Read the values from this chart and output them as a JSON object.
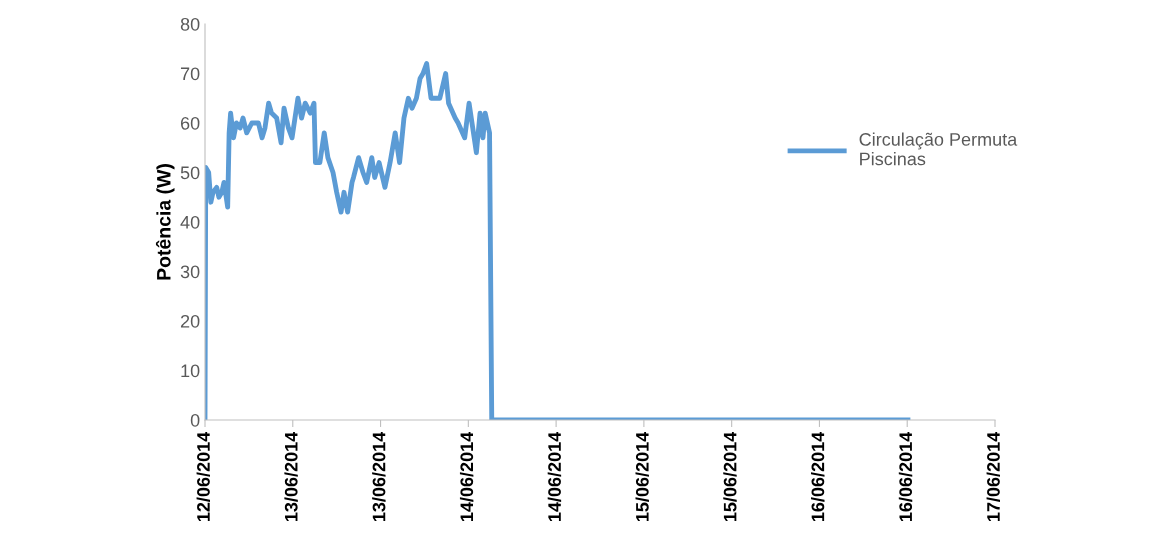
{
  "chart_data": {
    "type": "line",
    "ylabel": "Potência (W)",
    "legend": "right",
    "grid": false,
    "marker": "none",
    "line_style": "solid",
    "xlim": [
      "2014-06-12T12:00",
      "2014-06-17T00:00"
    ],
    "xticks": [
      {
        "value": "2014-06-12T12:00",
        "label": "12/06/2014"
      },
      {
        "value": "2014-06-13T00:00",
        "label": "13/06/2014"
      },
      {
        "value": "2014-06-13T12:00",
        "label": "13/06/2014"
      },
      {
        "value": "2014-06-14T00:00",
        "label": "14/06/2014"
      },
      {
        "value": "2014-06-14T12:00",
        "label": "14/06/2014"
      },
      {
        "value": "2014-06-15T00:00",
        "label": "15/06/2014"
      },
      {
        "value": "2014-06-15T12:00",
        "label": "15/06/2014"
      },
      {
        "value": "2014-06-16T00:00",
        "label": "16/06/2014"
      },
      {
        "value": "2014-06-16T12:00",
        "label": "16/06/2014"
      },
      {
        "value": "2014-06-17T00:00",
        "label": "17/06/2014"
      }
    ],
    "ylim": [
      0,
      80
    ],
    "yticks": [
      0,
      10,
      20,
      30,
      40,
      50,
      60,
      70,
      80
    ],
    "series": [
      {
        "name": "Circulação Permuta\nPiscinas",
        "color": "#5b9bd5",
        "x": [
          "2014-06-12T12:00",
          "2014-06-12T12:06",
          "2014-06-12T12:30",
          "2014-06-12T12:48",
          "2014-06-12T13:06",
          "2014-06-12T13:36",
          "2014-06-12T13:54",
          "2014-06-12T14:18",
          "2014-06-12T14:36",
          "2014-06-12T15:06",
          "2014-06-12T15:18",
          "2014-06-12T15:30",
          "2014-06-12T15:54",
          "2014-06-12T16:18",
          "2014-06-12T16:48",
          "2014-06-12T17:12",
          "2014-06-12T17:42",
          "2014-06-12T18:24",
          "2014-06-12T19:18",
          "2014-06-12T19:48",
          "2014-06-12T20:12",
          "2014-06-12T20:42",
          "2014-06-12T21:06",
          "2014-06-12T21:48",
          "2014-06-12T22:24",
          "2014-06-12T22:48",
          "2014-06-12T23:24",
          "2014-06-12T23:54",
          "2014-06-13T00:18",
          "2014-06-13T00:42",
          "2014-06-13T01:12",
          "2014-06-13T01:42",
          "2014-06-13T02:24",
          "2014-06-13T02:54",
          "2014-06-13T03:06",
          "2014-06-13T03:42",
          "2014-06-13T04:18",
          "2014-06-13T04:48",
          "2014-06-13T05:30",
          "2014-06-13T06:00",
          "2014-06-13T06:36",
          "2014-06-13T07:00",
          "2014-06-13T07:30",
          "2014-06-13T08:06",
          "2014-06-13T08:18",
          "2014-06-13T09:00",
          "2014-06-13T09:36",
          "2014-06-13T10:06",
          "2014-06-13T10:48",
          "2014-06-13T11:12",
          "2014-06-13T11:48",
          "2014-06-13T12:36",
          "2014-06-13T13:18",
          "2014-06-13T14:00",
          "2014-06-13T14:36",
          "2014-06-13T15:12",
          "2014-06-13T15:48",
          "2014-06-13T16:18",
          "2014-06-13T16:54",
          "2014-06-13T17:24",
          "2014-06-13T17:48",
          "2014-06-13T18:18",
          "2014-06-13T18:54",
          "2014-06-13T20:06",
          "2014-06-13T20:54",
          "2014-06-13T21:18",
          "2014-06-13T22:12",
          "2014-06-13T22:36",
          "2014-06-13T23:30",
          "2014-06-14T00:06",
          "2014-06-14T00:36",
          "2014-06-14T01:06",
          "2014-06-14T01:36",
          "2014-06-14T02:00",
          "2014-06-14T02:18",
          "2014-06-14T02:54",
          "2014-06-14T03:12",
          "2014-06-16T12:06"
        ],
        "values": [
          0,
          51,
          50,
          44,
          46,
          47,
          45,
          46,
          48,
          43,
          58,
          62,
          57,
          60,
          59,
          61,
          58,
          60,
          60,
          57,
          59,
          64,
          62,
          61,
          56,
          63,
          59,
          57,
          61,
          65,
          61,
          64,
          62,
          64,
          52,
          52,
          58,
          53,
          50,
          46,
          42,
          46,
          42,
          48,
          49,
          53,
          50,
          48,
          53,
          49,
          52,
          47,
          52,
          58,
          52,
          61,
          65,
          63,
          65,
          69,
          70,
          72,
          65,
          65,
          70,
          64,
          61,
          60,
          57,
          64,
          59,
          54,
          62,
          57,
          62,
          58,
          0,
          0
        ]
      }
    ]
  }
}
